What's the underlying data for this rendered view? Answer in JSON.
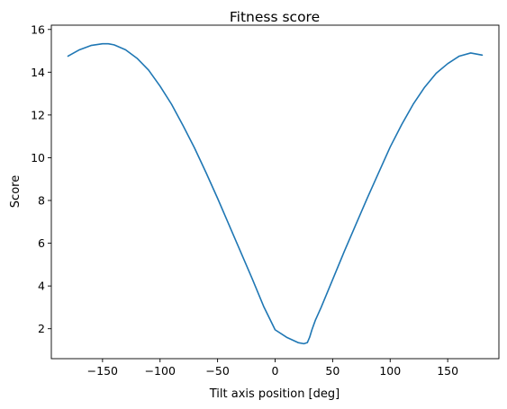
{
  "chart_data": {
    "type": "line",
    "title": "Fitness score",
    "xlabel": "Tilt axis position [deg]",
    "ylabel": "Score",
    "xlim": [
      -194.5,
      194.5
    ],
    "ylim": [
      0.6,
      16.2
    ],
    "xticks": [
      {
        "value": -150,
        "label": "−150"
      },
      {
        "value": -100,
        "label": "−100"
      },
      {
        "value": -50,
        "label": "−50"
      },
      {
        "value": 0,
        "label": "0"
      },
      {
        "value": 50,
        "label": "50"
      },
      {
        "value": 100,
        "label": "100"
      },
      {
        "value": 150,
        "label": "150"
      }
    ],
    "yticks": [
      {
        "value": 2,
        "label": "2"
      },
      {
        "value": 4,
        "label": "4"
      },
      {
        "value": 6,
        "label": "6"
      },
      {
        "value": 8,
        "label": "8"
      },
      {
        "value": 10,
        "label": "10"
      },
      {
        "value": 12,
        "label": "12"
      },
      {
        "value": 14,
        "label": "14"
      },
      {
        "value": 16,
        "label": "16"
      }
    ],
    "grid": false,
    "series": [
      {
        "name": "Fitness score",
        "color": "#1f77b4",
        "x": [
          -180,
          -170,
          -160,
          -150,
          -145,
          -140,
          -130,
          -120,
          -110,
          -100,
          -90,
          -80,
          -70,
          -60,
          -50,
          -40,
          -30,
          -20,
          -10,
          0,
          10,
          20,
          25,
          28,
          30,
          32,
          35,
          40,
          50,
          60,
          70,
          80,
          90,
          100,
          110,
          120,
          130,
          140,
          150,
          160,
          170,
          180
        ],
        "y": [
          14.75,
          15.05,
          15.25,
          15.33,
          15.33,
          15.28,
          15.05,
          14.65,
          14.1,
          13.35,
          12.5,
          11.5,
          10.45,
          9.3,
          8.1,
          6.85,
          5.6,
          4.35,
          3.05,
          1.95,
          1.6,
          1.35,
          1.3,
          1.35,
          1.6,
          1.95,
          2.4,
          3.0,
          4.3,
          5.6,
          6.85,
          8.1,
          9.3,
          10.5,
          11.55,
          12.5,
          13.3,
          13.95,
          14.4,
          14.75,
          14.9,
          14.8
        ]
      }
    ]
  }
}
